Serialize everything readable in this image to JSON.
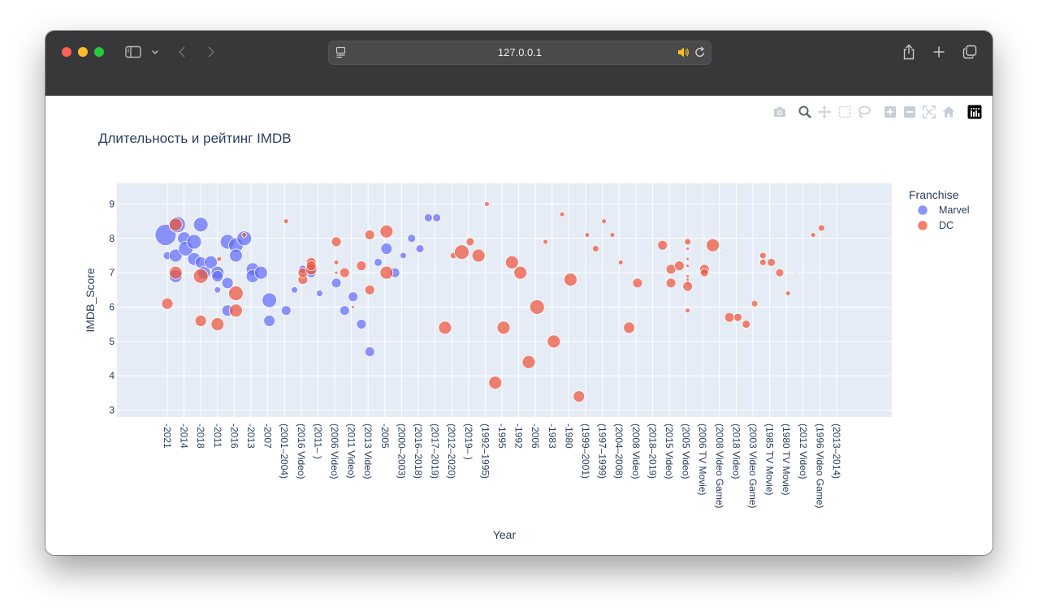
{
  "browser": {
    "url": "127.0.0.1",
    "icons": [
      "sidebar-icon",
      "chevron-down-icon",
      "back-icon",
      "forward-icon",
      "page-icon",
      "audio-icon",
      "reload-icon",
      "share-icon",
      "plus-icon",
      "tabs-icon"
    ]
  },
  "modebar": {
    "icons": [
      "camera-icon",
      "zoom-icon",
      "pan-icon",
      "box-select-icon",
      "lasso-icon",
      "zoom-in-icon",
      "zoom-out-icon",
      "autoscale-icon",
      "reset-axes-icon",
      "plotly-logo-icon"
    ]
  },
  "chart_data": {
    "type": "scatter",
    "title": "Длительность и рейтинг IMDB",
    "xlabel": "Year",
    "ylabel": "IMDB_Score",
    "ylim": [
      2.8,
      9.6
    ],
    "yticks": [
      3,
      4,
      5,
      6,
      7,
      8,
      9
    ],
    "x_tick_labels": [
      "-2021",
      "-2014",
      "-2018",
      "-2011",
      "-2016",
      "-2013",
      "-2007",
      "(2001–2004)",
      "(2016 Video)",
      "(2011– )",
      "(2006 Video)",
      "(2011 Video)",
      "(2013 Video)",
      "-2005",
      "(2000–2003)",
      "(2016–2018)",
      "(2017–2019)",
      "(2012–2020)",
      "(2019– )",
      "(1992–1995)",
      "-1995",
      "-1992",
      "-2006",
      "-1983",
      "-1980",
      "(1999–2001)",
      "(1997–1999)",
      "(2004–2008)",
      "(2008 Video)",
      "(2018–2019)",
      "(2015 Video)",
      "(2005 Video)",
      "(2006 TV Movie)",
      "(2008 Video Game)",
      "(2018 Video)",
      "(2003 Video Game)",
      "(1985 TV Movie)",
      "(1980 TV Movie)",
      "(2012 Video)",
      "(1996 Video Game)",
      "(2013–2014)"
    ],
    "legend": {
      "title": "Franchise",
      "position": "right"
    },
    "colors": {
      "Marvel": "#636efa",
      "DC": "#ef553b",
      "plot_bg": "#e5ecf6",
      "text": "#2a3f5f"
    },
    "series": [
      {
        "name": "Marvel",
        "points": [
          [
            -0.1,
            8.1,
            13
          ],
          [
            0,
            7.5,
            5
          ],
          [
            0.6,
            8.4,
            10
          ],
          [
            0.5,
            6.9,
            8
          ],
          [
            0.5,
            7.5,
            8
          ],
          [
            1.0,
            8.0,
            8
          ],
          [
            1.1,
            7.7,
            9
          ],
          [
            1.6,
            7.9,
            9
          ],
          [
            1.6,
            7.4,
            8
          ],
          [
            2.0,
            7.3,
            7
          ],
          [
            2.0,
            8.4,
            9
          ],
          [
            2.2,
            7.0,
            8
          ],
          [
            2.6,
            7.3,
            8
          ],
          [
            3.0,
            7.0,
            8
          ],
          [
            3.0,
            6.9,
            7
          ],
          [
            3.0,
            6.5,
            4
          ],
          [
            3.6,
            5.9,
            7
          ],
          [
            3.6,
            6.7,
            7
          ],
          [
            3.6,
            7.9,
            9
          ],
          [
            4.1,
            7.8,
            9
          ],
          [
            4.1,
            7.5,
            8
          ],
          [
            4.6,
            8.0,
            9
          ],
          [
            5.1,
            7.1,
            8
          ],
          [
            5.1,
            6.9,
            8
          ],
          [
            5.6,
            7.0,
            8
          ],
          [
            6.1,
            6.2,
            9
          ],
          [
            6.1,
            5.6,
            7
          ],
          [
            7.1,
            5.9,
            6
          ],
          [
            7.6,
            6.5,
            4
          ],
          [
            8.1,
            7.1,
            5
          ],
          [
            8.6,
            7.0,
            6
          ],
          [
            9.1,
            6.4,
            4
          ],
          [
            10.1,
            6.7,
            6
          ],
          [
            10.6,
            5.9,
            6
          ],
          [
            11.1,
            6.3,
            6
          ],
          [
            11.6,
            5.5,
            6
          ],
          [
            12.1,
            4.7,
            6
          ],
          [
            12.6,
            7.3,
            5
          ],
          [
            13.1,
            7.7,
            7
          ],
          [
            13.6,
            7.0,
            6
          ],
          [
            14.1,
            7.5,
            4
          ],
          [
            14.6,
            8.0,
            5
          ],
          [
            15.1,
            7.7,
            5
          ],
          [
            15.6,
            8.6,
            5
          ],
          [
            16.1,
            8.6,
            5
          ]
        ]
      },
      {
        "name": "DC",
        "points": [
          [
            0,
            6.1,
            7
          ],
          [
            0.5,
            8.4,
            8
          ],
          [
            0.5,
            7.0,
            8
          ],
          [
            2.0,
            6.9,
            9
          ],
          [
            2.0,
            5.6,
            7
          ],
          [
            3.0,
            5.5,
            8
          ],
          [
            3.1,
            7.4,
            3
          ],
          [
            4.1,
            6.4,
            9
          ],
          [
            4.1,
            5.9,
            8
          ],
          [
            4.6,
            8.1,
            3
          ],
          [
            6.8,
            8.1,
            1
          ],
          [
            7.1,
            8.5,
            3
          ],
          [
            8.1,
            6.8,
            6
          ],
          [
            8.1,
            7.0,
            6
          ],
          [
            8.6,
            7.3,
            6
          ],
          [
            8.6,
            7.1,
            7
          ],
          [
            8.6,
            7.2,
            6
          ],
          [
            10.1,
            7.9,
            6
          ],
          [
            10.1,
            7.3,
            3
          ],
          [
            10.1,
            7.0,
            2
          ],
          [
            10.6,
            7.0,
            6
          ],
          [
            11.1,
            6.0,
            2
          ],
          [
            11.6,
            7.2,
            6
          ],
          [
            12.1,
            8.1,
            6
          ],
          [
            12.1,
            6.5,
            6
          ],
          [
            13.1,
            8.2,
            8
          ],
          [
            13.1,
            7.0,
            8
          ],
          [
            16.6,
            5.4,
            8
          ],
          [
            17.1,
            7.5,
            4
          ],
          [
            17.6,
            7.6,
            9
          ],
          [
            18.1,
            7.9,
            5
          ],
          [
            18.6,
            7.5,
            8
          ],
          [
            19.1,
            9.0,
            3
          ],
          [
            19.6,
            3.8,
            8
          ],
          [
            20.1,
            5.4,
            8
          ],
          [
            20.6,
            7.3,
            8
          ],
          [
            21.1,
            7.0,
            8
          ],
          [
            21.6,
            4.4,
            8
          ],
          [
            22.1,
            6.0,
            9
          ],
          [
            22.6,
            7.9,
            3
          ],
          [
            23.1,
            5.0,
            8
          ],
          [
            23.6,
            8.7,
            3
          ],
          [
            24.1,
            6.8,
            8
          ],
          [
            24.6,
            3.4,
            7
          ],
          [
            25.1,
            8.1,
            3
          ],
          [
            25.6,
            7.7,
            4
          ],
          [
            26.1,
            8.5,
            3
          ],
          [
            26.6,
            8.1,
            3
          ],
          [
            27.1,
            7.3,
            3
          ],
          [
            27.6,
            5.4,
            7
          ],
          [
            28.1,
            6.7,
            6
          ],
          [
            29.1,
            7.6,
            1
          ],
          [
            29.6,
            7.8,
            6
          ],
          [
            30.1,
            7.1,
            6
          ],
          [
            30.1,
            6.7,
            6
          ],
          [
            30.6,
            7.2,
            6
          ],
          [
            31.1,
            7.9,
            4
          ],
          [
            31.1,
            7.7,
            2
          ],
          [
            31.1,
            7.4,
            2
          ],
          [
            31.1,
            7.2,
            2
          ],
          [
            31.1,
            6.9,
            2
          ],
          [
            31.1,
            6.8,
            2
          ],
          [
            31.1,
            6.7,
            2
          ],
          [
            31.1,
            6.6,
            6
          ],
          [
            31.1,
            5.9,
            3
          ],
          [
            32.1,
            7.1,
            6
          ],
          [
            32.1,
            7.0,
            5
          ],
          [
            32.6,
            7.8,
            8
          ],
          [
            33.1,
            7.7,
            1
          ],
          [
            33.6,
            5.7,
            6
          ],
          [
            34.1,
            5.7,
            5
          ],
          [
            34.6,
            5.5,
            5
          ],
          [
            35.1,
            6.1,
            4
          ],
          [
            35.6,
            7.5,
            4
          ],
          [
            35.6,
            7.3,
            4
          ],
          [
            36.1,
            7.3,
            5
          ],
          [
            36.6,
            7.0,
            5
          ],
          [
            37.1,
            6.4,
            3
          ],
          [
            37.6,
            7.0,
            1
          ],
          [
            38.6,
            8.1,
            3
          ],
          [
            39.1,
            8.3,
            4
          ]
        ]
      }
    ]
  }
}
